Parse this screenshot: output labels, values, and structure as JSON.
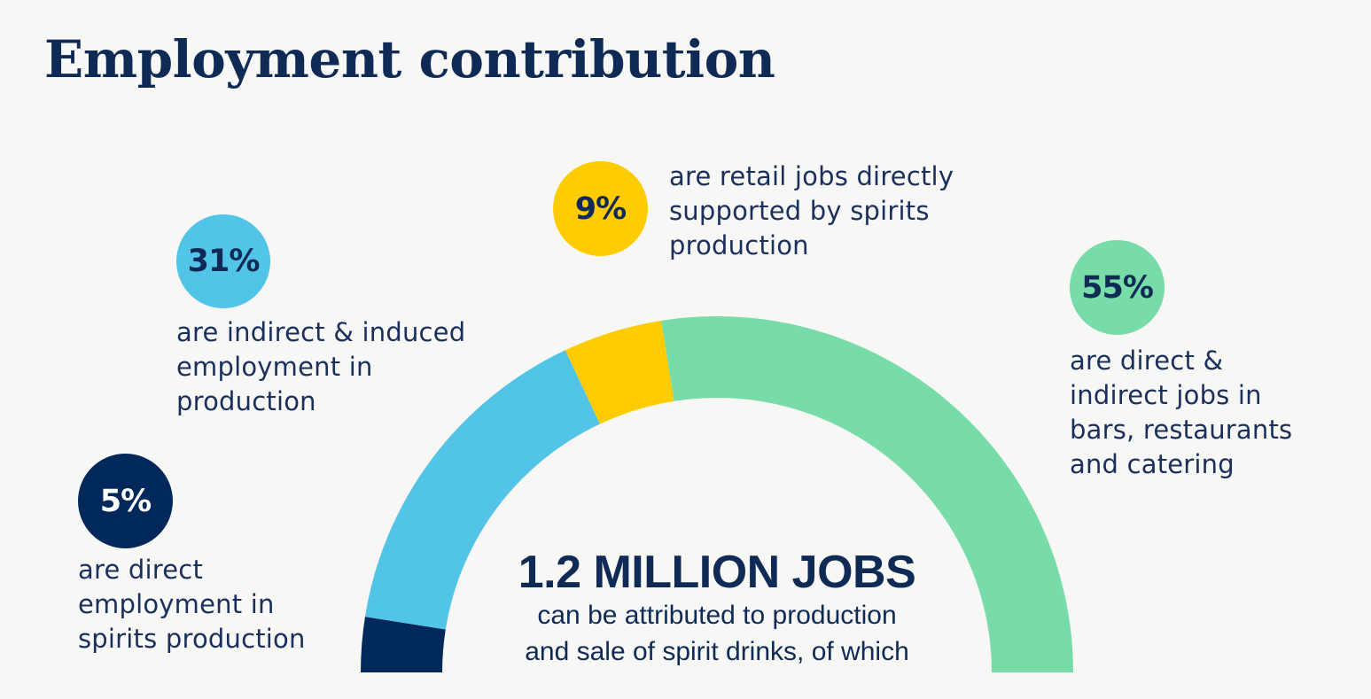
{
  "title": "Employment contribution",
  "colors": {
    "navy": "#00285a",
    "blue": "#52c4e7",
    "yellow": "#fecc00",
    "green": "#78dca8",
    "text": "#0e2a55",
    "background": "#f7f7f5"
  },
  "center": {
    "headline": "1.2 MILLION JOBS",
    "subtitle_lines": [
      "can be attributed to production",
      "and sale of spirit drinks, of which"
    ]
  },
  "segments": [
    {
      "value": "5%",
      "color": "#00285a",
      "text_color": "#ffffff",
      "description_lines": [
        "are direct",
        "employment in",
        "spirits production"
      ]
    },
    {
      "value": "31%",
      "color": "#52c4e7",
      "text_color": "#0e2a55",
      "description_lines": [
        "are indirect & induced",
        "employment in",
        "production"
      ]
    },
    {
      "value": "9%",
      "color": "#fecc00",
      "text_color": "#0e2a55",
      "description_lines": [
        "are retail jobs directly",
        "supported by spirits",
        "production"
      ]
    },
    {
      "value": "55%",
      "color": "#78dca8",
      "text_color": "#0e2a55",
      "description_lines": [
        "are direct &",
        "indirect jobs in",
        "bars, restaurants",
        "and catering"
      ]
    }
  ],
  "chart_data": {
    "type": "pie",
    "subtype": "semicircle-donut",
    "title": "Employment contribution",
    "total_label": "1.2 MILLION JOBS",
    "categories": [
      "Direct employment in spirits production",
      "Indirect & induced employment in production",
      "Retail jobs directly supported by spirits production",
      "Direct & indirect jobs in bars, restaurants and catering"
    ],
    "values": [
      5,
      31,
      9,
      55
    ],
    "unit": "%",
    "colors": [
      "#00285a",
      "#52c4e7",
      "#fecc00",
      "#78dca8"
    ],
    "legend": "none (callout badges)"
  }
}
